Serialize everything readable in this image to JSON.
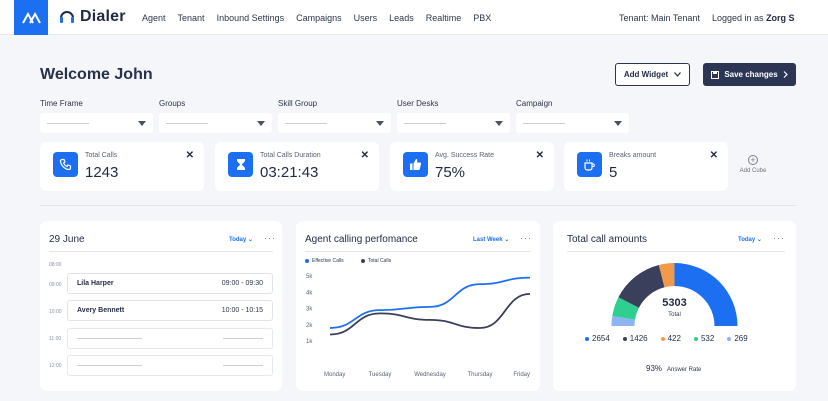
{
  "nav": {
    "brand": "Dialer",
    "items": [
      "Agent",
      "Tenant",
      "Inbound Settings",
      "Campaigns",
      "Users",
      "Leads",
      "Realtime",
      "PBX"
    ],
    "tenant": "Tenant: Main Tenant",
    "logged_prefix": "Logged in as",
    "user": "Zorg S"
  },
  "header": {
    "welcome": "Welcome John",
    "add_widget": "Add Widget",
    "save_changes": "Save changes"
  },
  "filters": [
    {
      "label": "Time Frame"
    },
    {
      "label": "Groups"
    },
    {
      "label": "Skill Group"
    },
    {
      "label": "User Desks"
    },
    {
      "label": "Campaign"
    }
  ],
  "stats": [
    {
      "label": "Total Calls",
      "value": "1243",
      "icon": "phone-icon"
    },
    {
      "label": "Total Calls Duration",
      "value": "03:21:43",
      "icon": "hourglass-icon"
    },
    {
      "label": "Avg. Success Rate",
      "value": "75%",
      "icon": "thumbs-up-icon"
    },
    {
      "label": "Breaks amount",
      "value": "5",
      "icon": "coffee-icon"
    }
  ],
  "add_cube": "Add Cube",
  "schedule": {
    "title": "29 June",
    "dropdown": "Today",
    "times": [
      "08:00",
      "09:00",
      "10:00",
      "11:00",
      "12:00"
    ],
    "entries": [
      {
        "name": "Lila Harper",
        "time": "09:00 - 09:30"
      },
      {
        "name": "Avery Bennett",
        "time": "10:00 - 10:15"
      }
    ]
  },
  "performance": {
    "title": "Agent calling perfomance",
    "dropdown": "Last Week"
  },
  "amounts": {
    "title": "Total call amounts",
    "dropdown": "Today",
    "total_value": "5303",
    "total_label": "Total",
    "legend": [
      {
        "value": "2654",
        "color": "#1d6ff2"
      },
      {
        "value": "1426",
        "color": "#3a3f5c"
      },
      {
        "value": "422",
        "color": "#f29a4a"
      },
      {
        "value": "532",
        "color": "#2ecf8f"
      },
      {
        "value": "269",
        "color": "#8fb4f5"
      }
    ],
    "answer_rate_value": "93%",
    "answer_rate_label": "Answer Rate"
  },
  "chart_data": {
    "type": "line",
    "title": "Agent calling perfomance",
    "categories": [
      "Monday",
      "Tuesday",
      "Wednesday",
      "Thursday",
      "Friday"
    ],
    "y_ticks": [
      "5k",
      "4k",
      "3k",
      "2k",
      "1k"
    ],
    "ylim": [
      1000,
      5000
    ],
    "series": [
      {
        "name": "Effective Calls",
        "color": "#1d6ff2",
        "values": [
          1800,
          2900,
          3100,
          4500,
          4900
        ]
      },
      {
        "name": "Total Calls",
        "color": "#3a3f5c",
        "values": [
          1400,
          2700,
          2300,
          1800,
          3900
        ]
      }
    ],
    "legend_position": "top-left",
    "grid": false
  },
  "colors": {
    "accent": "#1d6ff2",
    "dark": "#2c3554"
  }
}
